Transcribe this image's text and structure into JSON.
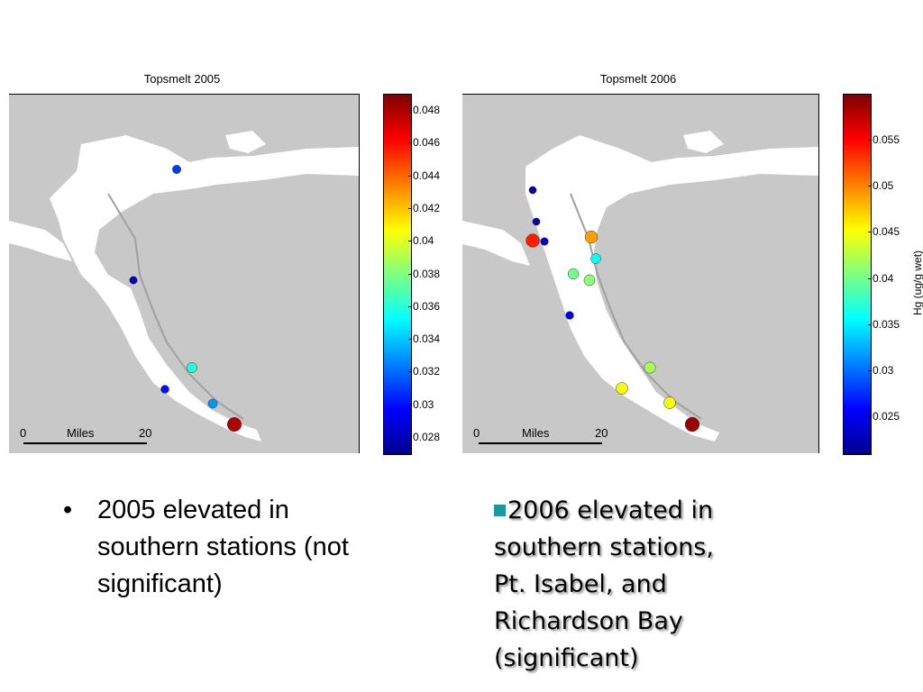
{
  "maps": [
    {
      "title": "Topsmelt 2005",
      "colorbar_ticks": [
        "0.048",
        "0.046",
        "0.044",
        "0.042",
        "0.04",
        "0.038",
        "0.036",
        "0.034",
        "0.032",
        "0.03",
        "0.028"
      ],
      "colorbar_range": [
        0.027,
        0.049
      ],
      "scale": {
        "start": "0",
        "unit": "Miles",
        "end": "20"
      },
      "stations": [
        {
          "value": 0.031
        },
        {
          "value": 0.028
        },
        {
          "value": 0.036
        },
        {
          "value": 0.03
        },
        {
          "value": 0.033
        },
        {
          "value": 0.048
        }
      ]
    },
    {
      "title": "Topsmelt 2006",
      "colorbar_ticks": [
        "0.055",
        "0.05",
        "0.045",
        "0.04",
        "0.035",
        "0.03",
        "0.025"
      ],
      "colorbar_range": [
        0.021,
        0.06
      ],
      "colorbar_label": "Hg (ug/g wet)",
      "scale": {
        "start": "0",
        "unit": "Miles",
        "end": "20"
      },
      "stations": [
        {
          "value": 0.022
        },
        {
          "value": 0.022
        },
        {
          "value": 0.054
        },
        {
          "value": 0.024
        },
        {
          "value": 0.049
        },
        {
          "value": 0.036
        },
        {
          "value": 0.04
        },
        {
          "value": 0.041
        },
        {
          "value": 0.025
        },
        {
          "value": 0.042
        },
        {
          "value": 0.045
        },
        {
          "value": 0.045
        },
        {
          "value": 0.059
        }
      ]
    }
  ],
  "bullets": {
    "left_marker": "•",
    "left_text": "2005 elevated in southern stations (not significant)",
    "right_lines": [
      "2006 elevated in",
      "southern stations,",
      "Pt. Isabel, and",
      "Richardson Bay",
      "(significant)"
    ]
  },
  "colors": {
    "land": "#c8c8c8",
    "water": "#ffffff",
    "bullet_square": "#1a9a9a"
  }
}
